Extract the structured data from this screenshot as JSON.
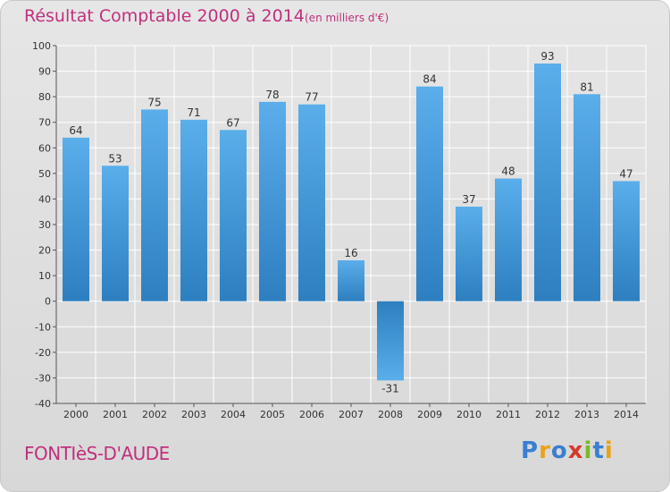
{
  "title": "Résultat Comptable 2000 à 2014",
  "subtitle": "(en milliers d'€)",
  "town": "FONTIèS-D'AUDE",
  "logo": {
    "text": "Proxiti",
    "letters": [
      {
        "ch": "P",
        "color": "#3a7fd0"
      },
      {
        "ch": "r",
        "color": "#e8a21c"
      },
      {
        "ch": "o",
        "color": "#3a7fd0"
      },
      {
        "ch": "x",
        "color": "#d43a2a"
      },
      {
        "ch": "i",
        "color": "#7ab829"
      },
      {
        "ch": "t",
        "color": "#3a7fd0"
      },
      {
        "ch": "i",
        "color": "#e8a21c"
      }
    ]
  },
  "colors": {
    "accent": "#c0307e",
    "bar_light": "#5aaeea",
    "bar_dark": "#2d7fc0",
    "grid": "#ffffff",
    "axis_text": "#333333"
  },
  "chart_data": {
    "type": "bar",
    "categories": [
      "2000",
      "2001",
      "2002",
      "2003",
      "2004",
      "2005",
      "2006",
      "2007",
      "2008",
      "2009",
      "2010",
      "2011",
      "2012",
      "2013",
      "2014"
    ],
    "values": [
      64,
      53,
      75,
      71,
      67,
      78,
      77,
      16,
      -31,
      84,
      37,
      48,
      93,
      81,
      47
    ],
    "ylim": [
      -40,
      100
    ],
    "yticks": [
      -40,
      -30,
      -20,
      -10,
      0,
      10,
      20,
      30,
      40,
      50,
      60,
      70,
      80,
      90,
      100
    ],
    "grid": true,
    "data_labels": true
  }
}
